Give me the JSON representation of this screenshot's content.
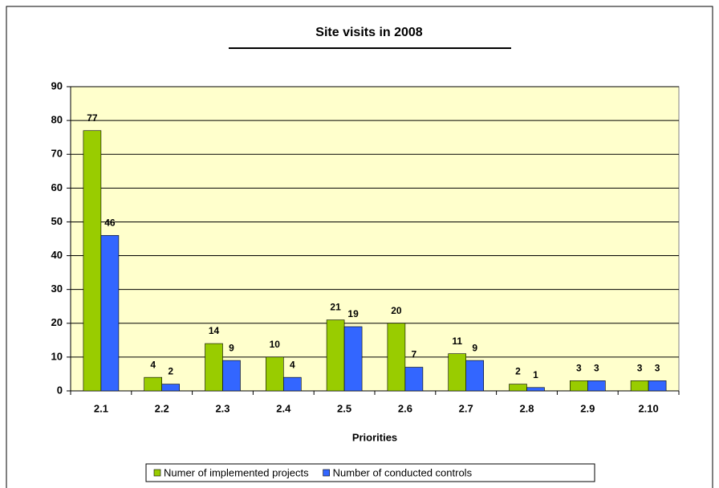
{
  "chart_data": {
    "type": "bar",
    "title": "Site visits in 2008",
    "x_label": "Priorities",
    "categories": [
      "2.1",
      "2.2",
      "2.3",
      "2.4",
      "2.5",
      "2.6",
      "2.7",
      "2.8",
      "2.9",
      "2.10"
    ],
    "series": [
      {
        "name": "Numer of implemented projects",
        "color": "#99cc00",
        "values": [
          77,
          4,
          14,
          10,
          21,
          20,
          11,
          2,
          3,
          3
        ]
      },
      {
        "name": "Number of conducted controls",
        "color": "#3366ff",
        "values": [
          46,
          2,
          9,
          4,
          19,
          7,
          9,
          1,
          3,
          3
        ]
      }
    ],
    "ylim": [
      0,
      90
    ],
    "yticks": [
      0,
      10,
      20,
      30,
      40,
      50,
      60,
      70,
      80,
      90
    ],
    "grid": true,
    "legend": "bottom"
  }
}
